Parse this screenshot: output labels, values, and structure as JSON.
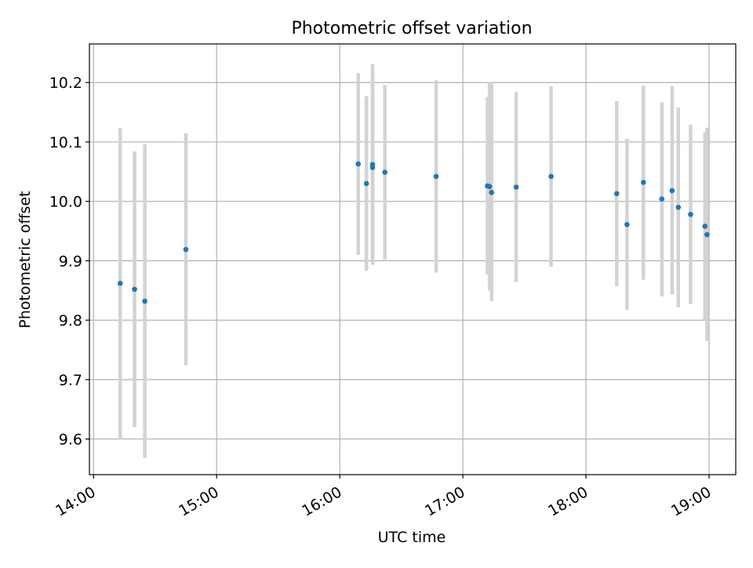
{
  "chart_data": {
    "type": "scatter",
    "title": "Photometric offset variation",
    "xlabel": "UTC time",
    "ylabel": "Photometric offset",
    "xaxis": "time",
    "xlim": [
      "13:58",
      "19:13"
    ],
    "ylim": [
      9.54,
      10.265
    ],
    "xticks": [
      "14:00",
      "15:00",
      "16:00",
      "17:00",
      "18:00",
      "19:00"
    ],
    "yticks": [
      9.6,
      9.7,
      9.8,
      9.9,
      10.0,
      10.1,
      10.2
    ],
    "grid": true,
    "legend": false,
    "colors": {
      "point": "#1f77b4",
      "errorbar": "#d3d3d3",
      "grid": "#b0b0b0"
    },
    "points": [
      {
        "x": "14:13",
        "y": 9.862,
        "ylow": 9.6,
        "yhigh": 10.124
      },
      {
        "x": "14:20",
        "y": 9.852,
        "ylow": 9.62,
        "yhigh": 10.084
      },
      {
        "x": "14:25",
        "y": 9.832,
        "ylow": 9.568,
        "yhigh": 10.096
      },
      {
        "x": "14:45",
        "y": 9.919,
        "ylow": 9.724,
        "yhigh": 10.115
      },
      {
        "x": "16:09",
        "y": 10.063,
        "ylow": 9.91,
        "yhigh": 10.216
      },
      {
        "x": "16:13",
        "y": 10.03,
        "ylow": 9.883,
        "yhigh": 10.177
      },
      {
        "x": "16:16",
        "y": 10.062,
        "ylow": 9.893,
        "yhigh": 10.231
      },
      {
        "x": "16:16",
        "y": 10.057,
        "ylow": 9.905,
        "yhigh": 10.209
      },
      {
        "x": "16:22",
        "y": 10.049,
        "ylow": 9.902,
        "yhigh": 10.196
      },
      {
        "x": "16:47",
        "y": 10.042,
        "ylow": 9.88,
        "yhigh": 10.204
      },
      {
        "x": "17:12",
        "y": 10.026,
        "ylow": 9.877,
        "yhigh": 10.176
      },
      {
        "x": "17:13",
        "y": 10.025,
        "ylow": 9.85,
        "yhigh": 10.2
      },
      {
        "x": "17:14",
        "y": 10.015,
        "ylow": 9.832,
        "yhigh": 10.198
      },
      {
        "x": "17:26",
        "y": 10.024,
        "ylow": 9.864,
        "yhigh": 10.184
      },
      {
        "x": "17:43",
        "y": 10.042,
        "ylow": 9.89,
        "yhigh": 10.194
      },
      {
        "x": "18:15",
        "y": 10.013,
        "ylow": 9.857,
        "yhigh": 10.169
      },
      {
        "x": "18:20",
        "y": 9.961,
        "ylow": 9.817,
        "yhigh": 10.105
      },
      {
        "x": "18:28",
        "y": 10.032,
        "ylow": 9.868,
        "yhigh": 10.195
      },
      {
        "x": "18:37",
        "y": 10.004,
        "ylow": 9.84,
        "yhigh": 10.167
      },
      {
        "x": "18:42",
        "y": 10.018,
        "ylow": 9.843,
        "yhigh": 10.194
      },
      {
        "x": "18:45",
        "y": 9.99,
        "ylow": 9.822,
        "yhigh": 10.158
      },
      {
        "x": "18:51",
        "y": 9.978,
        "ylow": 9.827,
        "yhigh": 10.129
      },
      {
        "x": "18:58",
        "y": 9.958,
        "ylow": 9.8,
        "yhigh": 10.116
      },
      {
        "x": "18:59",
        "y": 9.944,
        "ylow": 9.765,
        "yhigh": 10.124
      }
    ]
  }
}
